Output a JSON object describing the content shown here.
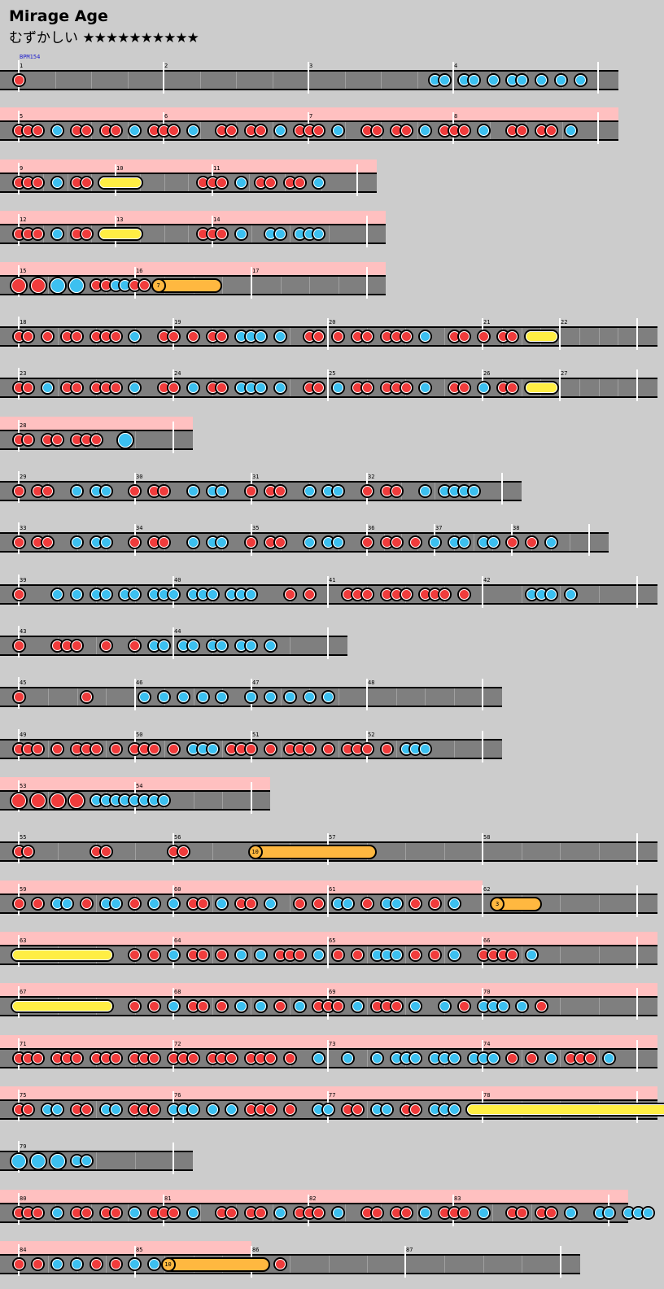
{
  "song": {
    "title": "Mirage Age",
    "difficulty_label": "むずかしい",
    "stars": "★★★★★★★★★★"
  },
  "bpm_label": "BPM154",
  "colors": {
    "don": "#f03c3c",
    "ka": "#3cc0f0",
    "roll": "#ffee44",
    "balloon": "#ffb840",
    "gogo_band": "#ffc0c0",
    "lane": "#7f7f7f"
  },
  "rows": [
    {
      "gogo": false,
      "measures": [
        "1",
        "2",
        "3",
        "4"
      ],
      "notes": "D..........................................KK.KK.K.KK.K.K.K..."
    },
    {
      "gogo": true,
      "measures": [
        "5",
        "6",
        "7",
        "8"
      ],
      "notes": "DDD.K.DD.DD.K.DDD.K..DD.DD.K.DDD.K..DD.DD.K.DDD.K..DD.DD.K."
    },
    {
      "gogo": true,
      "measures": [
        "9",
        "10",
        "11"
      ],
      "notes": "DDD.K.DD.RRRR......DDD.K.DD.DD.K..."
    },
    {
      "gogo": true,
      "measures": [
        "12",
        "13",
        "14"
      ],
      "notes": "DDD.K.DD.RRRR......DDD.K..KK.KKK..."
    },
    {
      "gogo": true,
      "measures": [
        "15",
        "16",
        "17"
      ],
      "balloon_hits": "7",
      "notes": "D.D.K.K.DDKKDDB........."
    },
    {
      "gogo": false,
      "measures": [
        "18",
        "19",
        "20",
        "21",
        "22"
      ],
      "notes": "DD.D.DD.DDD.K..DD.D.DD.KKK.K..DD.D.DD.DDD.K..DD.D.DD.RRR..."
    },
    {
      "gogo": false,
      "measures": [
        "23",
        "24",
        "25",
        "26",
        "27"
      ],
      "notes": "DD.K.DD.DDD.K..DD.K.DD.KKK.K..DD.K.DD.DDD.K..DD.K.DD.RRR..."
    },
    {
      "gogo": true,
      "measures": [
        "28"
      ],
      "notes": "DD.DD.DDD..K.."
    },
    {
      "gogo": false,
      "measures": [
        "29",
        "30",
        "31",
        "32"
      ],
      "notes": "D.DD..K.KK..D.DD..K.KK..D.DD..K.KK..D.DD..K.KKKK...."
    },
    {
      "gogo": false,
      "measures": [
        "33",
        "34",
        "35",
        "36",
        "37",
        "38"
      ],
      "notes": "D.DD..K.KK..D.DD..K.KK..D.DD..K.KK..D.DD.D.K.KK.KK.D.D.K......"
    },
    {
      "gogo": false,
      "measures": [
        "39",
        "40",
        "41",
        "42"
      ],
      "notes": "D...K.K.KK.KK.KKK.KKK.KKK...D.D...DDD.DDD.DDD.D......KKK.K."
    },
    {
      "gogo": false,
      "measures": [
        "43",
        "44"
      ],
      "notes": "D...DDD..D..D.KK.KK.KK.KK.K...."
    },
    {
      "gogo": false,
      "measures": [
        "45",
        "46",
        "47",
        "48"
      ],
      "notes": "D......D.....K.K.K.K.K..K.K.K.K.K...."
    },
    {
      "gogo": false,
      "measures": [
        "49",
        "50",
        "51",
        "52"
      ],
      "notes": "DDD.D.DDD.D.DDD.D.KKK.DDD.D.DDD.D.DDD.D.KKK...."
    },
    {
      "gogo": true,
      "measures": [
        "53",
        "54"
      ],
      "notes": "D.D.D.D.KKKKKKKK...."
    },
    {
      "gogo": false,
      "measures": [
        "55",
        "56",
        "57",
        "58"
      ],
      "balloon_hits": "10",
      "notes": "DD......DD......DD......B..............."
    },
    {
      "gogo": true,
      "measures": [
        "59",
        "60",
        "61",
        "62"
      ],
      "balloon_hits": "3",
      "notes": "D.D.KK.D.KK.D.K.K.DD.K.DD.K..D.D.KK.D.KK.D.D.K...B......."
    },
    {
      "gogo": true,
      "measures": [
        "63",
        "64",
        "65",
        "66"
      ],
      "notes": "RRRRRRRRRR..D.D.K.DD.D.K.K.DDD.K.D.D.KKK.D.D.K..DDDD.K...."
    },
    {
      "gogo": true,
      "measures": [
        "67",
        "68",
        "69",
        "70"
      ],
      "notes": "RRRRRRRRRR..D.D.K.DD.D.K.K.D.K.DDD.K.DDD.K..K.D.KKK.K.D...."
    },
    {
      "gogo": true,
      "measures": [
        "71",
        "72",
        "73",
        "74"
      ],
      "notes": "DDD.DDD.DDD.DDD.DDD.DDD.DDD.D..K..K..K.KKK.KKK.KKK.D.D.K.DDD.K..."
    },
    {
      "gogo": true,
      "measures": [
        "75",
        "76",
        "77",
        "78"
      ],
      "notes": "DD.KK.DD.KK.DDD.KKK.K.K.DDD.D..KK.DD.KK.DD.KKK.RRRRRRRRRRRRRRRRRRRRRR...."
    },
    {
      "gogo": false,
      "measures": [
        "79"
      ],
      "notes": "K.K.K.KK...."
    },
    {
      "gogo": true,
      "measures": [
        "80",
        "81",
        "82",
        "83"
      ],
      "notes": "DDD.K.DD.DD.K.DDD.K..DD.DD.K.DDD.K..DD.DD.K.DDD.K..DD.DD.K..KK.KKK.."
    },
    {
      "gogo": true,
      "measures": [
        "84",
        "85",
        "86",
        "87"
      ],
      "balloon_hits": "10",
      "notes": "D.D.K.K.D.D.K.KB...........D..........."
    }
  ]
}
